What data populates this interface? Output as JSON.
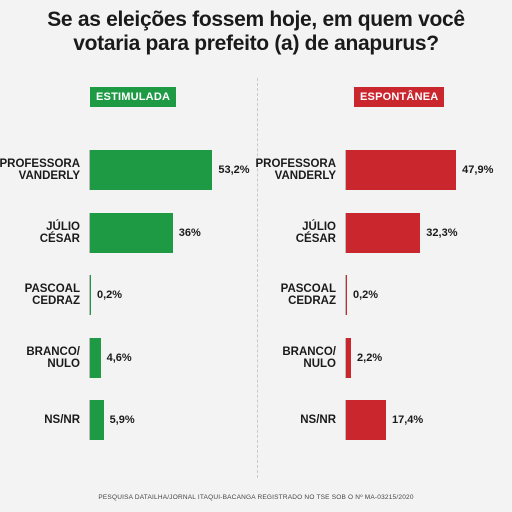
{
  "title_line1": "Se as eleições fossem hoje, em quem você",
  "title_line2": "votaria para prefeito (a) de anapurus?",
  "footer": "PESQUISA DATAILHA/JORNAL ITAQUI-BACANGA REGISTRADO NO TSE SOB O Nº MA-03215/2020",
  "colors": {
    "estimulada": "#1e9a44",
    "espontanea": "#c9262e"
  },
  "chart_data": [
    {
      "type": "bar",
      "orientation": "horizontal",
      "title": "ESTIMULADA",
      "categories": [
        "PROFESSORA\nVANDERLY",
        "JÚLIO\nCÉSAR",
        "PASCOAL\nCEDRAZ",
        "BRANCO/\nNULO",
        "NS/NR"
      ],
      "values": [
        53.2,
        36,
        0.2,
        4.6,
        5.9
      ],
      "value_labels": [
        "53,2%",
        "36%",
        "0,2%",
        "4,6%",
        "5,9%"
      ],
      "xlim": [
        0,
        100
      ]
    },
    {
      "type": "bar",
      "orientation": "horizontal",
      "title": "ESPONTÂNEA",
      "categories": [
        "PROFESSORA\nVANDERLY",
        "JÚLIO\nCÉSAR",
        "PASCOAL\nCEDRAZ",
        "BRANCO/\nNULO",
        "NS/NR"
      ],
      "values": [
        47.9,
        32.3,
        0.2,
        2.2,
        17.4
      ],
      "value_labels": [
        "47,9%",
        "32,3%",
        "0,2%",
        "2,2%",
        "17,4%"
      ],
      "xlim": [
        0,
        100
      ]
    }
  ]
}
